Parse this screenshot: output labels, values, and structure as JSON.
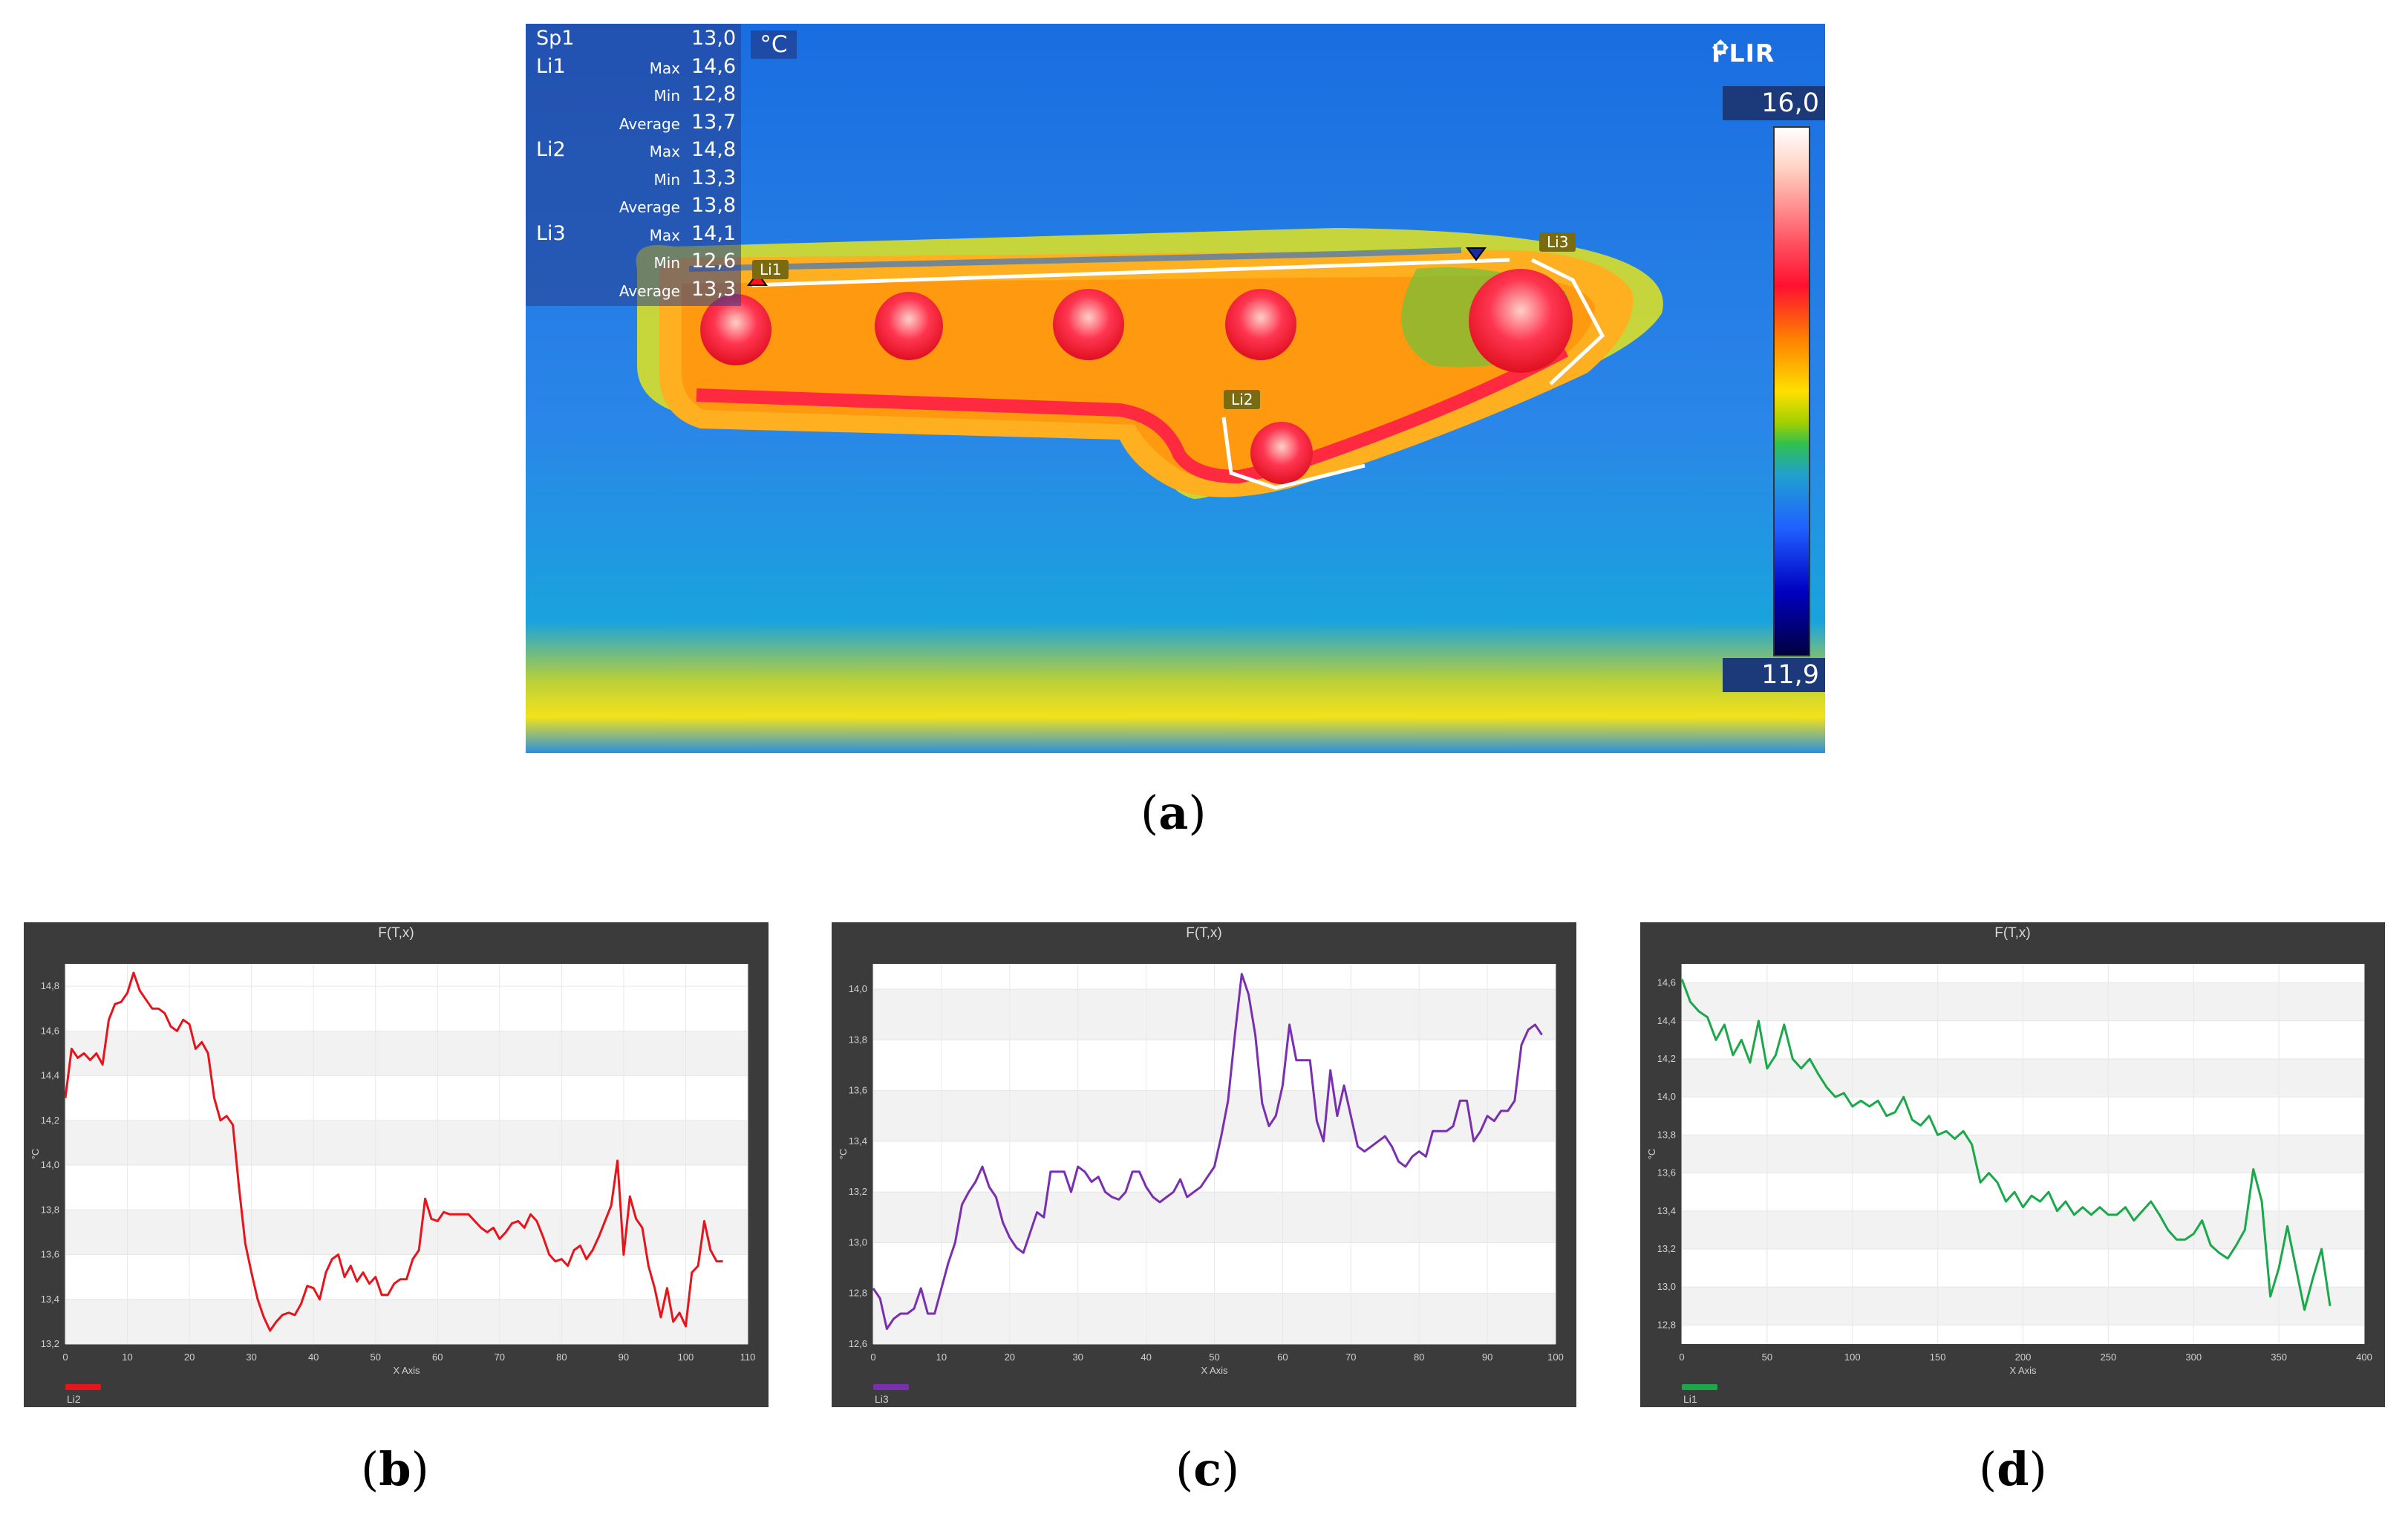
{
  "panel_a": {
    "caption": "a",
    "unit": "°C",
    "brand": "FLIR",
    "scale_max": "16,0",
    "scale_min": "11,9",
    "measurements": [
      {
        "label": "Sp1",
        "stat": "",
        "value": "13,0"
      },
      {
        "label": "Li1",
        "stat": "Max",
        "value": "14,6"
      },
      {
        "label": "",
        "stat": "Min",
        "value": "12,8"
      },
      {
        "label": "",
        "stat": "Average",
        "value": "13,7"
      },
      {
        "label": "Li2",
        "stat": "Max",
        "value": "14,8"
      },
      {
        "label": "",
        "stat": "Min",
        "value": "13,3"
      },
      {
        "label": "",
        "stat": "Average",
        "value": "13,8"
      },
      {
        "label": "Li3",
        "stat": "Max",
        "value": "14,1"
      },
      {
        "label": "",
        "stat": "Min",
        "value": "12,6"
      },
      {
        "label": "",
        "stat": "Average",
        "value": "13,3"
      }
    ],
    "line_tags": {
      "li1": "Li1",
      "li2": "Li2",
      "li3": "Li3"
    }
  },
  "chart_data": [
    {
      "id": "b",
      "caption": "b",
      "type": "line",
      "title": "F(T,x)",
      "xlabel": "X Axis",
      "ylabel": "°C",
      "legend": "Li2",
      "color": "#e8141b",
      "xlim": [
        0,
        110
      ],
      "ylim": [
        13.2,
        14.9
      ],
      "xticks": [
        0,
        10,
        20,
        30,
        40,
        50,
        60,
        70,
        80,
        90,
        100,
        110
      ],
      "yticks": [
        13.2,
        13.4,
        13.6,
        13.8,
        14.0,
        14.2,
        14.4,
        14.6,
        14.8
      ],
      "x": [
        0,
        1,
        2,
        3,
        4,
        5,
        6,
        7,
        8,
        9,
        10,
        11,
        12,
        13,
        14,
        15,
        16,
        17,
        18,
        19,
        20,
        21,
        22,
        23,
        24,
        25,
        26,
        27,
        28,
        29,
        30,
        31,
        32,
        33,
        34,
        35,
        36,
        37,
        38,
        39,
        40,
        41,
        42,
        43,
        44,
        45,
        46,
        47,
        48,
        49,
        50,
        51,
        52,
        53,
        54,
        55,
        56,
        57,
        58,
        59,
        60,
        61,
        62,
        63,
        64,
        65,
        66,
        67,
        68,
        69,
        70,
        71,
        72,
        73,
        74,
        75,
        76,
        77,
        78,
        79,
        80,
        81,
        82,
        83,
        84,
        85,
        86,
        87,
        88,
        89,
        90,
        91,
        92,
        93,
        94,
        95,
        96,
        97,
        98,
        99,
        100,
        101,
        102,
        103,
        104,
        105,
        106
      ],
      "y": [
        14.3,
        14.52,
        14.48,
        14.5,
        14.47,
        14.5,
        14.45,
        14.65,
        14.72,
        14.73,
        14.77,
        14.86,
        14.78,
        14.74,
        14.7,
        14.7,
        14.68,
        14.62,
        14.6,
        14.65,
        14.63,
        14.52,
        14.55,
        14.5,
        14.3,
        14.2,
        14.22,
        14.18,
        13.9,
        13.65,
        13.52,
        13.4,
        13.32,
        13.26,
        13.3,
        13.33,
        13.34,
        13.33,
        13.38,
        13.46,
        13.45,
        13.4,
        13.52,
        13.58,
        13.6,
        13.5,
        13.55,
        13.48,
        13.52,
        13.47,
        13.5,
        13.42,
        13.42,
        13.47,
        13.49,
        13.49,
        13.58,
        13.62,
        13.85,
        13.76,
        13.75,
        13.79,
        13.78,
        13.78,
        13.78,
        13.78,
        13.75,
        13.72,
        13.7,
        13.72,
        13.67,
        13.7,
        13.74,
        13.75,
        13.72,
        13.78,
        13.75,
        13.68,
        13.6,
        13.57,
        13.58,
        13.55,
        13.62,
        13.64,
        13.58,
        13.62,
        13.68,
        13.75,
        13.82,
        14.02,
        13.6,
        13.86,
        13.76,
        13.72,
        13.55,
        13.45,
        13.32,
        13.45,
        13.3,
        13.34,
        13.28,
        13.52,
        13.55,
        13.75,
        13.62,
        13.57,
        13.57
      ]
    },
    {
      "id": "c",
      "caption": "c",
      "type": "line",
      "title": "F(T,x)",
      "xlabel": "X Axis",
      "ylabel": "°C",
      "legend": "Li3",
      "color": "#7a2fb0",
      "xlim": [
        0,
        100
      ],
      "ylim": [
        12.6,
        14.1
      ],
      "xticks": [
        0,
        10,
        20,
        30,
        40,
        50,
        60,
        70,
        80,
        90,
        100
      ],
      "yticks": [
        12.6,
        12.8,
        13.0,
        13.2,
        13.4,
        13.6,
        13.8,
        14.0
      ],
      "x": [
        0,
        1,
        2,
        3,
        4,
        5,
        6,
        7,
        8,
        9,
        10,
        11,
        12,
        13,
        14,
        15,
        16,
        17,
        18,
        19,
        20,
        21,
        22,
        23,
        24,
        25,
        26,
        27,
        28,
        29,
        30,
        31,
        32,
        33,
        34,
        35,
        36,
        37,
        38,
        39,
        40,
        41,
        42,
        43,
        44,
        45,
        46,
        47,
        48,
        49,
        50,
        51,
        52,
        53,
        54,
        55,
        56,
        57,
        58,
        59,
        60,
        61,
        62,
        63,
        64,
        65,
        66,
        67,
        68,
        69,
        70,
        71,
        72,
        73,
        74,
        75,
        76,
        77,
        78,
        79,
        80,
        81,
        82,
        83,
        84,
        85,
        86,
        87,
        88,
        89,
        90,
        91,
        92,
        93,
        94,
        95,
        96,
        97,
        98
      ],
      "y": [
        12.82,
        12.78,
        12.66,
        12.7,
        12.72,
        12.72,
        12.74,
        12.82,
        12.72,
        12.72,
        12.82,
        12.92,
        13.0,
        13.15,
        13.2,
        13.24,
        13.3,
        13.22,
        13.18,
        13.08,
        13.02,
        12.98,
        12.96,
        13.04,
        13.12,
        13.1,
        13.28,
        13.28,
        13.28,
        13.2,
        13.3,
        13.28,
        13.24,
        13.26,
        13.2,
        13.18,
        13.17,
        13.2,
        13.28,
        13.28,
        13.22,
        13.18,
        13.16,
        13.18,
        13.2,
        13.25,
        13.18,
        13.2,
        13.22,
        13.26,
        13.3,
        13.42,
        13.56,
        13.82,
        14.06,
        13.98,
        13.82,
        13.55,
        13.46,
        13.5,
        13.62,
        13.86,
        13.72,
        13.72,
        13.72,
        13.48,
        13.4,
        13.68,
        13.5,
        13.62,
        13.5,
        13.38,
        13.36,
        13.38,
        13.4,
        13.42,
        13.38,
        13.32,
        13.3,
        13.34,
        13.36,
        13.34,
        13.44,
        13.44,
        13.44,
        13.46,
        13.56,
        13.56,
        13.4,
        13.44,
        13.5,
        13.48,
        13.52,
        13.52,
        13.56,
        13.78,
        13.84,
        13.86,
        13.82
      ]
    },
    {
      "id": "d",
      "caption": "d",
      "type": "line",
      "title": "F(T,x)",
      "xlabel": "X Axis",
      "ylabel": "°C",
      "legend": "Li1",
      "color": "#1aa84a",
      "xlim": [
        0,
        400
      ],
      "ylim": [
        12.7,
        14.7
      ],
      "xticks": [
        0,
        50,
        100,
        150,
        200,
        250,
        300,
        350,
        400
      ],
      "yticks": [
        12.8,
        13.0,
        13.2,
        13.4,
        13.6,
        13.8,
        14.0,
        14.2,
        14.4,
        14.6
      ],
      "x": [
        0,
        5,
        10,
        15,
        20,
        25,
        30,
        35,
        40,
        45,
        50,
        55,
        60,
        65,
        70,
        75,
        80,
        85,
        90,
        95,
        100,
        105,
        110,
        115,
        120,
        125,
        130,
        135,
        140,
        145,
        150,
        155,
        160,
        165,
        170,
        175,
        180,
        185,
        190,
        195,
        200,
        205,
        210,
        215,
        220,
        225,
        230,
        235,
        240,
        245,
        250,
        255,
        260,
        265,
        270,
        275,
        280,
        285,
        290,
        295,
        300,
        305,
        310,
        315,
        320,
        325,
        330,
        335,
        340,
        345,
        350,
        355,
        360,
        365,
        370,
        375,
        380
      ],
      "y": [
        14.62,
        14.5,
        14.45,
        14.42,
        14.3,
        14.38,
        14.22,
        14.3,
        14.18,
        14.4,
        14.15,
        14.22,
        14.38,
        14.2,
        14.15,
        14.2,
        14.12,
        14.05,
        14.0,
        14.02,
        13.95,
        13.98,
        13.95,
        13.98,
        13.9,
        13.92,
        14.0,
        13.88,
        13.85,
        13.9,
        13.8,
        13.82,
        13.78,
        13.82,
        13.75,
        13.55,
        13.6,
        13.55,
        13.45,
        13.5,
        13.42,
        13.48,
        13.45,
        13.5,
        13.4,
        13.45,
        13.38,
        13.42,
        13.38,
        13.42,
        13.38,
        13.38,
        13.42,
        13.35,
        13.4,
        13.45,
        13.38,
        13.3,
        13.25,
        13.25,
        13.28,
        13.35,
        13.22,
        13.18,
        13.15,
        13.22,
        13.3,
        13.62,
        13.45,
        12.95,
        13.1,
        13.32,
        13.1,
        12.88,
        13.05,
        13.2,
        12.9
      ]
    }
  ]
}
